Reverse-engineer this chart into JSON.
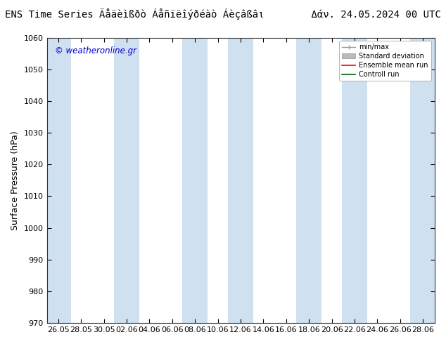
{
  "title_left": "ENS Time Series Äåäèìßðò Áåñïëîýðéàò Áèçâßâι",
  "title_right": "Δάν. 24.05.2024 00 UTC",
  "ylabel": "Surface Pressure (hPa)",
  "watermark": "© weatheronline.gr",
  "ylim": [
    970,
    1060
  ],
  "yticks": [
    970,
    980,
    990,
    1000,
    1010,
    1020,
    1030,
    1040,
    1050,
    1060
  ],
  "xtick_labels": [
    "26.05",
    "28.05",
    "30.05",
    "02.06",
    "04.06",
    "06.06",
    "08.06",
    "10.06",
    "12.06",
    "14.06",
    "16.06",
    "18.06",
    "20.06",
    "22.06",
    "24.06",
    "26.06",
    "28.06"
  ],
  "band_color": "#cfe0f0",
  "background_color": "#ffffff",
  "plot_bg_color": "#ffffff",
  "legend_items": [
    "min/max",
    "Standard deviation",
    "Ensemble mean run",
    "Controll run"
  ],
  "legend_colors_line": [
    "#aaaaaa",
    "#bbbbbb",
    "#ff0000",
    "#008000"
  ],
  "title_fontsize": 10,
  "axis_fontsize": 8,
  "watermark_color": "#0000cc",
  "n_xticks": 17,
  "xmin": 0,
  "xmax": 17,
  "band_ranges": [
    [
      0.0,
      0.7
    ],
    [
      2.35,
      3.05
    ],
    [
      5.4,
      6.1
    ],
    [
      7.45,
      8.15
    ],
    [
      10.5,
      11.2
    ],
    [
      12.55,
      13.25
    ],
    [
      15.6,
      16.3
    ],
    [
      16.65,
      17.0
    ]
  ]
}
